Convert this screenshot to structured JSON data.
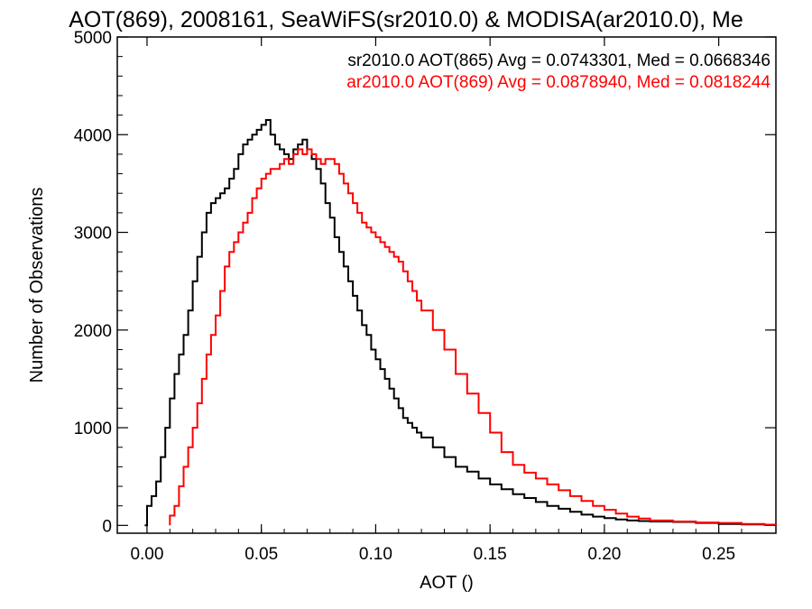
{
  "chart_data": {
    "type": "line",
    "title": "AOT(869), 2008161, SeaWiFS(sr2010.0) & MODISA(ar2010.0), Me",
    "xlabel": "AOT ()",
    "ylabel": "Number of Observations",
    "xlim": [
      -0.013,
      0.275
    ],
    "ylim": [
      -80,
      5000
    ],
    "x_ticks": [
      0.0,
      0.05,
      0.1,
      0.15,
      0.2,
      0.25
    ],
    "x_tick_labels": [
      "0.00",
      "0.05",
      "0.10",
      "0.15",
      "0.20",
      "0.25"
    ],
    "y_ticks": [
      0,
      1000,
      2000,
      3000,
      4000,
      5000
    ],
    "y_tick_labels": [
      "0",
      "1000",
      "2000",
      "3000",
      "4000",
      "5000"
    ],
    "legend_position": "top-right",
    "grid": false,
    "series": [
      {
        "name": "sr2010.0 AOT(865) Avg = 0.0743301, Med = 0.0668346",
        "color": "#000000",
        "style": "step",
        "x": [
          -0.001,
          0.0,
          0.002,
          0.004,
          0.006,
          0.008,
          0.01,
          0.012,
          0.014,
          0.016,
          0.018,
          0.02,
          0.022,
          0.024,
          0.026,
          0.028,
          0.03,
          0.032,
          0.034,
          0.036,
          0.038,
          0.04,
          0.042,
          0.044,
          0.046,
          0.048,
          0.05,
          0.052,
          0.054,
          0.056,
          0.058,
          0.06,
          0.062,
          0.064,
          0.066,
          0.068,
          0.07,
          0.072,
          0.074,
          0.076,
          0.078,
          0.08,
          0.082,
          0.084,
          0.086,
          0.088,
          0.09,
          0.092,
          0.094,
          0.096,
          0.098,
          0.1,
          0.102,
          0.104,
          0.106,
          0.108,
          0.11,
          0.112,
          0.114,
          0.116,
          0.118,
          0.12,
          0.125,
          0.13,
          0.135,
          0.14,
          0.145,
          0.15,
          0.155,
          0.16,
          0.165,
          0.17,
          0.175,
          0.18,
          0.185,
          0.19,
          0.195,
          0.2,
          0.205,
          0.21,
          0.215,
          0.22,
          0.23,
          0.24,
          0.25,
          0.26,
          0.27,
          0.275
        ],
        "y": [
          0,
          200,
          300,
          450,
          700,
          1000,
          1300,
          1550,
          1750,
          1950,
          2200,
          2500,
          2750,
          3000,
          3200,
          3300,
          3350,
          3400,
          3450,
          3550,
          3650,
          3800,
          3900,
          3950,
          4000,
          4050,
          4100,
          4150,
          4000,
          3900,
          3850,
          3800,
          3750,
          3850,
          3900,
          3950,
          3850,
          3750,
          3650,
          3500,
          3300,
          3150,
          2950,
          2800,
          2650,
          2500,
          2350,
          2200,
          2050,
          1950,
          1800,
          1700,
          1600,
          1500,
          1400,
          1300,
          1200,
          1100,
          1050,
          1000,
          950,
          900,
          800,
          700,
          600,
          550,
          480,
          420,
          370,
          320,
          280,
          240,
          200,
          170,
          140,
          110,
          90,
          75,
          60,
          50,
          45,
          40,
          35,
          25,
          15,
          10,
          5,
          0
        ]
      },
      {
        "name": "ar2010.0 AOT(869) Avg = 0.0878940, Med = 0.0818244",
        "color": "#ff0000",
        "style": "step",
        "x": [
          0.01,
          0.012,
          0.014,
          0.016,
          0.018,
          0.02,
          0.022,
          0.024,
          0.026,
          0.028,
          0.03,
          0.032,
          0.034,
          0.036,
          0.038,
          0.04,
          0.042,
          0.044,
          0.046,
          0.048,
          0.05,
          0.052,
          0.054,
          0.056,
          0.058,
          0.06,
          0.062,
          0.064,
          0.066,
          0.068,
          0.07,
          0.072,
          0.074,
          0.076,
          0.078,
          0.08,
          0.082,
          0.084,
          0.086,
          0.088,
          0.09,
          0.092,
          0.094,
          0.096,
          0.098,
          0.1,
          0.102,
          0.104,
          0.106,
          0.108,
          0.11,
          0.112,
          0.114,
          0.116,
          0.118,
          0.12,
          0.125,
          0.13,
          0.135,
          0.14,
          0.145,
          0.15,
          0.155,
          0.16,
          0.165,
          0.17,
          0.175,
          0.18,
          0.185,
          0.19,
          0.195,
          0.2,
          0.205,
          0.21,
          0.215,
          0.22,
          0.23,
          0.24,
          0.25,
          0.26,
          0.27,
          0.275
        ],
        "y": [
          100,
          200,
          400,
          600,
          800,
          1000,
          1250,
          1500,
          1750,
          1950,
          2150,
          2400,
          2650,
          2800,
          2900,
          3000,
          3100,
          3200,
          3350,
          3450,
          3550,
          3600,
          3650,
          3650,
          3700,
          3750,
          3700,
          3800,
          3850,
          3800,
          3850,
          3800,
          3750,
          3700,
          3750,
          3750,
          3700,
          3600,
          3500,
          3400,
          3300,
          3200,
          3100,
          3050,
          3000,
          2950,
          2900,
          2850,
          2800,
          2750,
          2700,
          2600,
          2500,
          2400,
          2300,
          2200,
          2000,
          1800,
          1550,
          1350,
          1150,
          950,
          750,
          620,
          540,
          480,
          420,
          360,
          300,
          250,
          200,
          160,
          120,
          90,
          70,
          50,
          40,
          30,
          25,
          15,
          8,
          0
        ]
      }
    ]
  }
}
